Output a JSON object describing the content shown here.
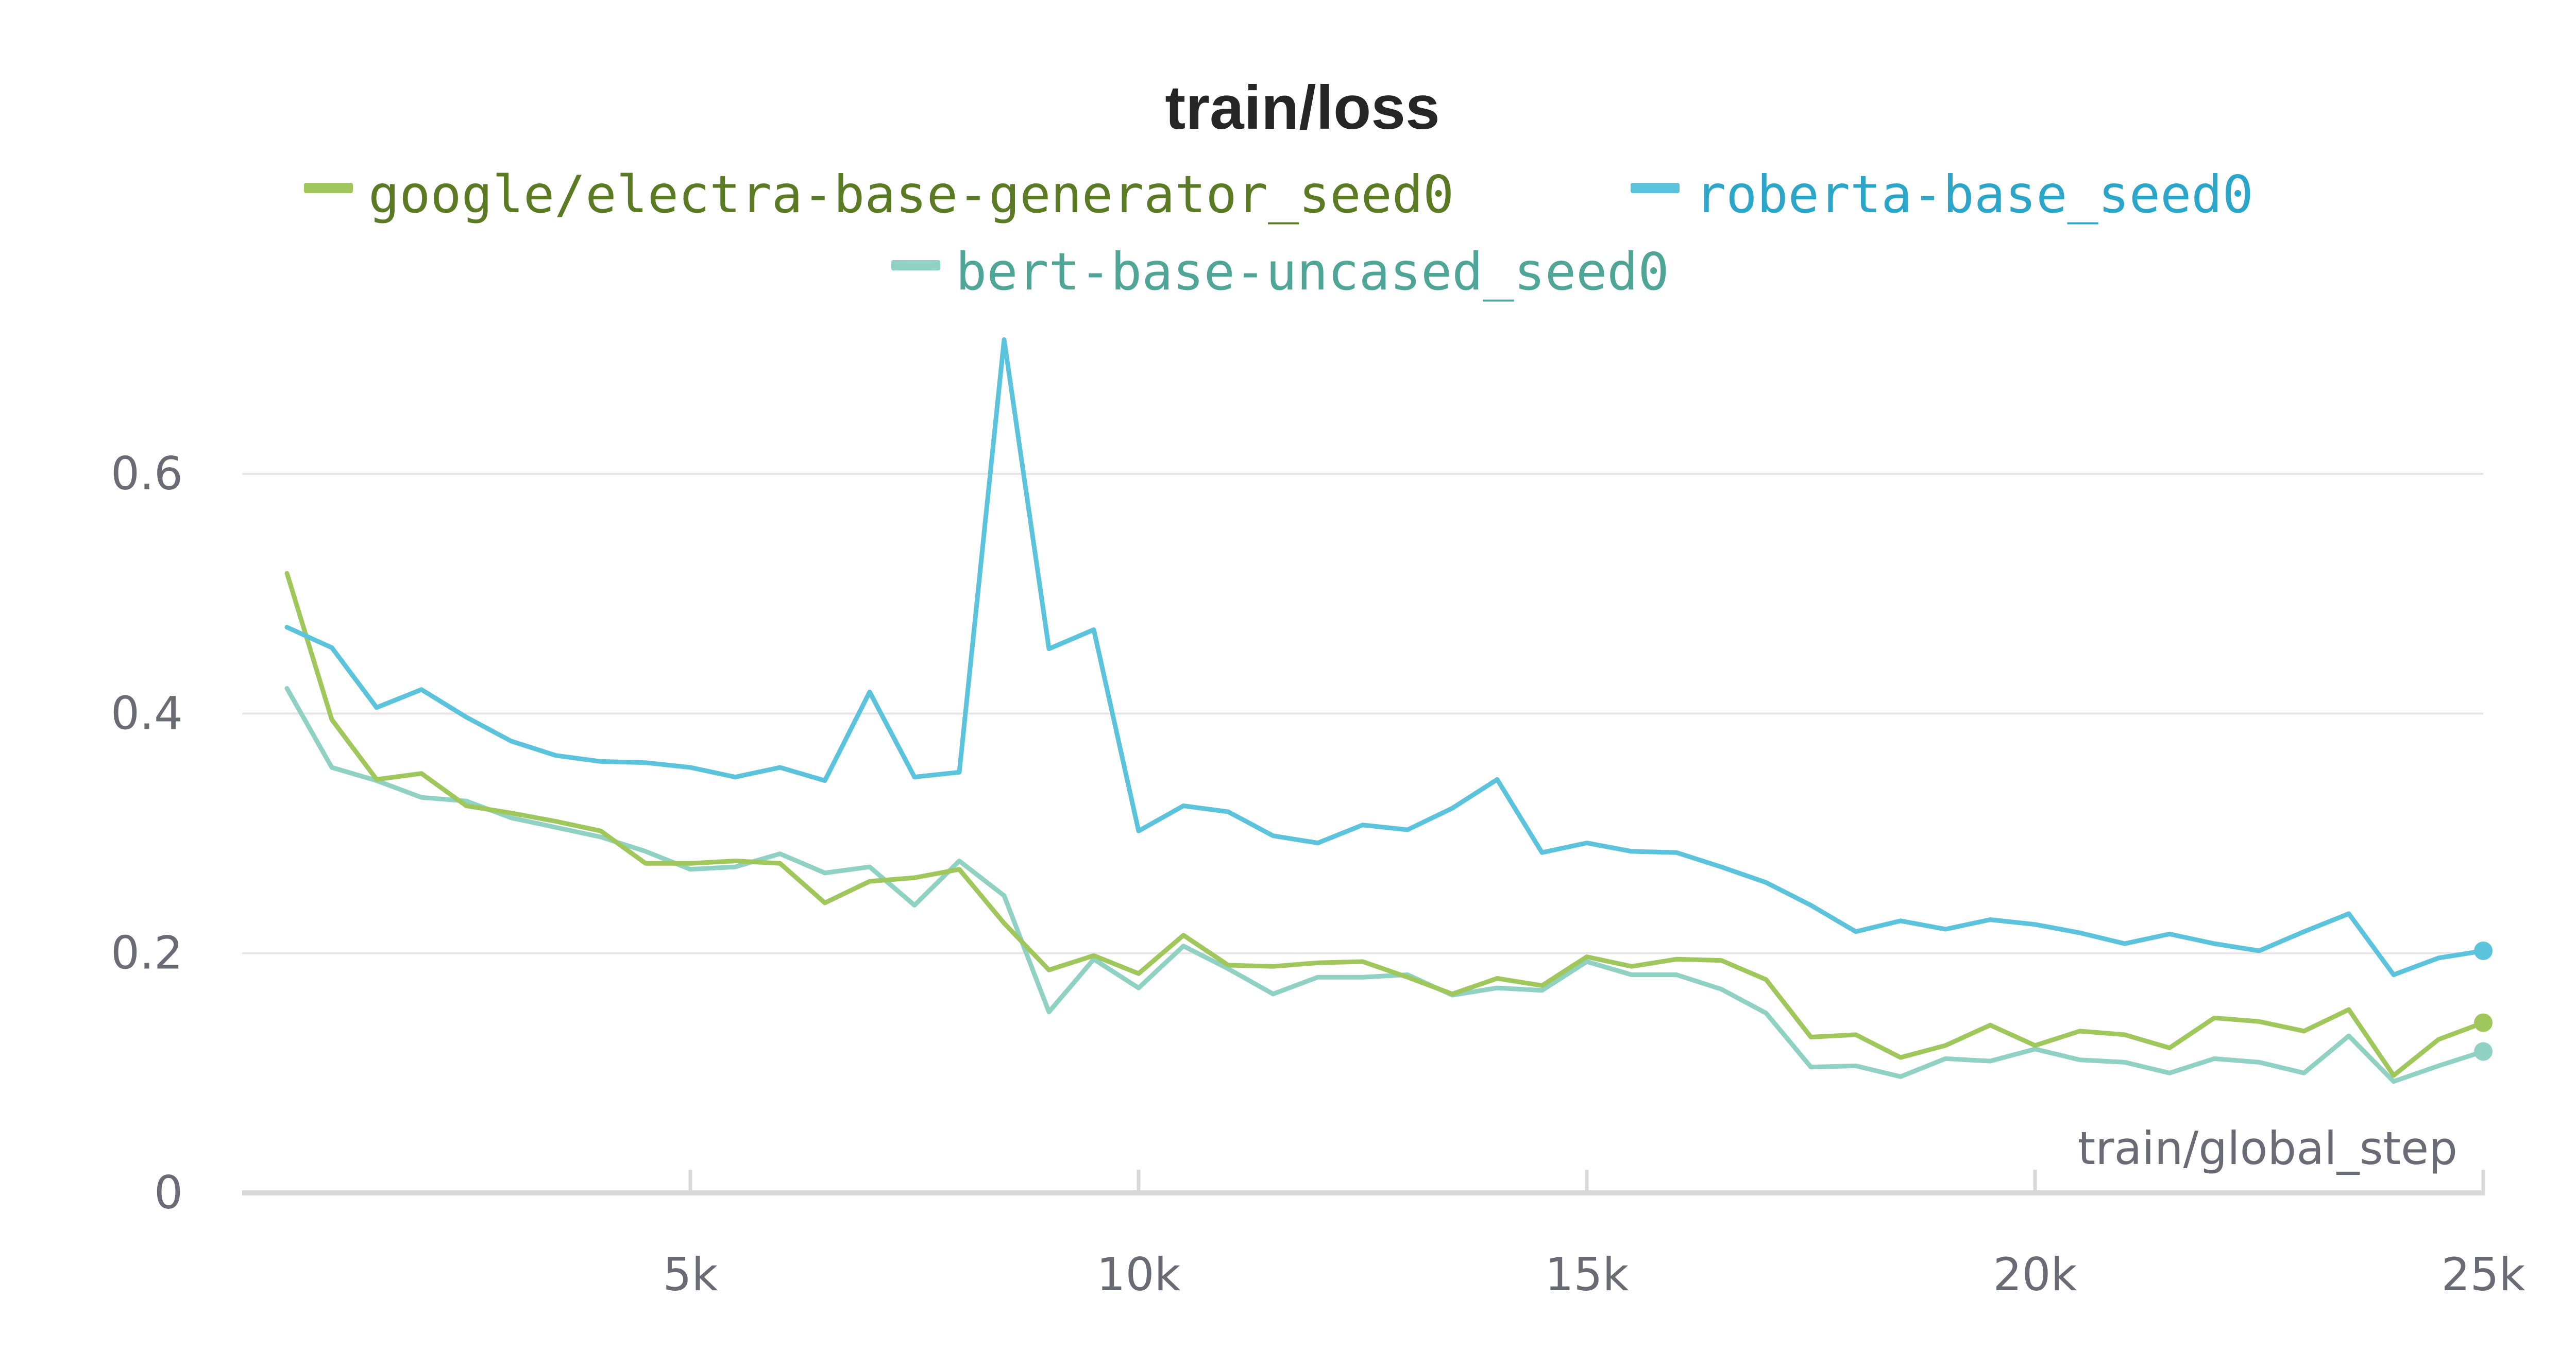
{
  "chart_data": {
    "type": "line",
    "title": "train/loss",
    "xlabel": "train/global_step",
    "ylabel": "",
    "xlim": [
      0,
      25000
    ],
    "ylim": [
      0,
      0.72
    ],
    "x_ticks": [
      {
        "value": 5000,
        "label": "5k"
      },
      {
        "value": 10000,
        "label": "10k"
      },
      {
        "value": 15000,
        "label": "15k"
      },
      {
        "value": 20000,
        "label": "20k"
      },
      {
        "value": 25000,
        "label": "25k"
      }
    ],
    "y_ticks": [
      {
        "value": 0,
        "label": "0"
      },
      {
        "value": 0.2,
        "label": "0.2"
      },
      {
        "value": 0.4,
        "label": "0.4"
      },
      {
        "value": 0.6,
        "label": "0.6"
      }
    ],
    "grid": true,
    "legend_position": "top-center",
    "x": [
      500,
      1000,
      1500,
      2000,
      2500,
      3000,
      3500,
      4000,
      4500,
      5000,
      5500,
      6000,
      6500,
      7000,
      7500,
      8000,
      8500,
      9000,
      9500,
      10000,
      10500,
      11000,
      11500,
      12000,
      12500,
      13000,
      13500,
      14000,
      14500,
      15000,
      15500,
      16000,
      16500,
      17000,
      17500,
      18000,
      18500,
      19000,
      19500,
      20000,
      20500,
      21000,
      21500,
      22000,
      22500,
      23000,
      23500,
      24000,
      24500,
      25000
    ],
    "series": [
      {
        "name": "google/electra-base-generator_seed0",
        "color": "#a0c75c",
        "text_color": "#5a7a23",
        "values": [
          0.517,
          0.395,
          0.345,
          0.35,
          0.323,
          0.317,
          0.31,
          0.302,
          0.275,
          0.275,
          0.277,
          0.275,
          0.242,
          0.26,
          0.263,
          0.27,
          0.225,
          0.186,
          0.198,
          0.183,
          0.215,
          0.19,
          0.189,
          0.192,
          0.193,
          0.18,
          0.166,
          0.179,
          0.173,
          0.197,
          0.189,
          0.195,
          0.194,
          0.178,
          0.13,
          0.132,
          0.113,
          0.123,
          0.14,
          0.123,
          0.135,
          0.132,
          0.121,
          0.146,
          0.143,
          0.135,
          0.153,
          0.098,
          0.128,
          0.142
        ]
      },
      {
        "name": "roberta-base_seed0",
        "color": "#5bc4dc",
        "text_color": "#2ba6c8",
        "values": [
          0.472,
          0.455,
          0.405,
          0.42,
          0.397,
          0.377,
          0.365,
          0.36,
          0.359,
          0.355,
          0.347,
          0.355,
          0.344,
          0.418,
          0.347,
          0.351,
          0.712,
          0.454,
          0.47,
          0.302,
          0.323,
          0.318,
          0.298,
          0.292,
          0.307,
          0.303,
          0.321,
          0.345,
          0.284,
          0.292,
          0.285,
          0.284,
          0.272,
          0.259,
          0.24,
          0.218,
          0.227,
          0.22,
          0.228,
          0.224,
          0.217,
          0.208,
          0.216,
          0.208,
          0.202,
          0.218,
          0.233,
          0.182,
          0.196,
          0.202
        ]
      },
      {
        "name": "bert-base-uncased_seed0",
        "color": "#8fd1c2",
        "text_color": "#4fa596",
        "values": [
          0.421,
          0.355,
          0.344,
          0.33,
          0.327,
          0.313,
          0.305,
          0.297,
          0.285,
          0.27,
          0.272,
          0.283,
          0.267,
          0.272,
          0.24,
          0.277,
          0.248,
          0.151,
          0.195,
          0.171,
          0.206,
          0.187,
          0.166,
          0.18,
          0.18,
          0.182,
          0.165,
          0.171,
          0.169,
          0.193,
          0.182,
          0.182,
          0.17,
          0.15,
          0.105,
          0.106,
          0.097,
          0.112,
          0.11,
          0.12,
          0.111,
          0.109,
          0.1,
          0.112,
          0.109,
          0.1,
          0.131,
          0.093,
          0.106,
          0.118
        ]
      }
    ]
  }
}
